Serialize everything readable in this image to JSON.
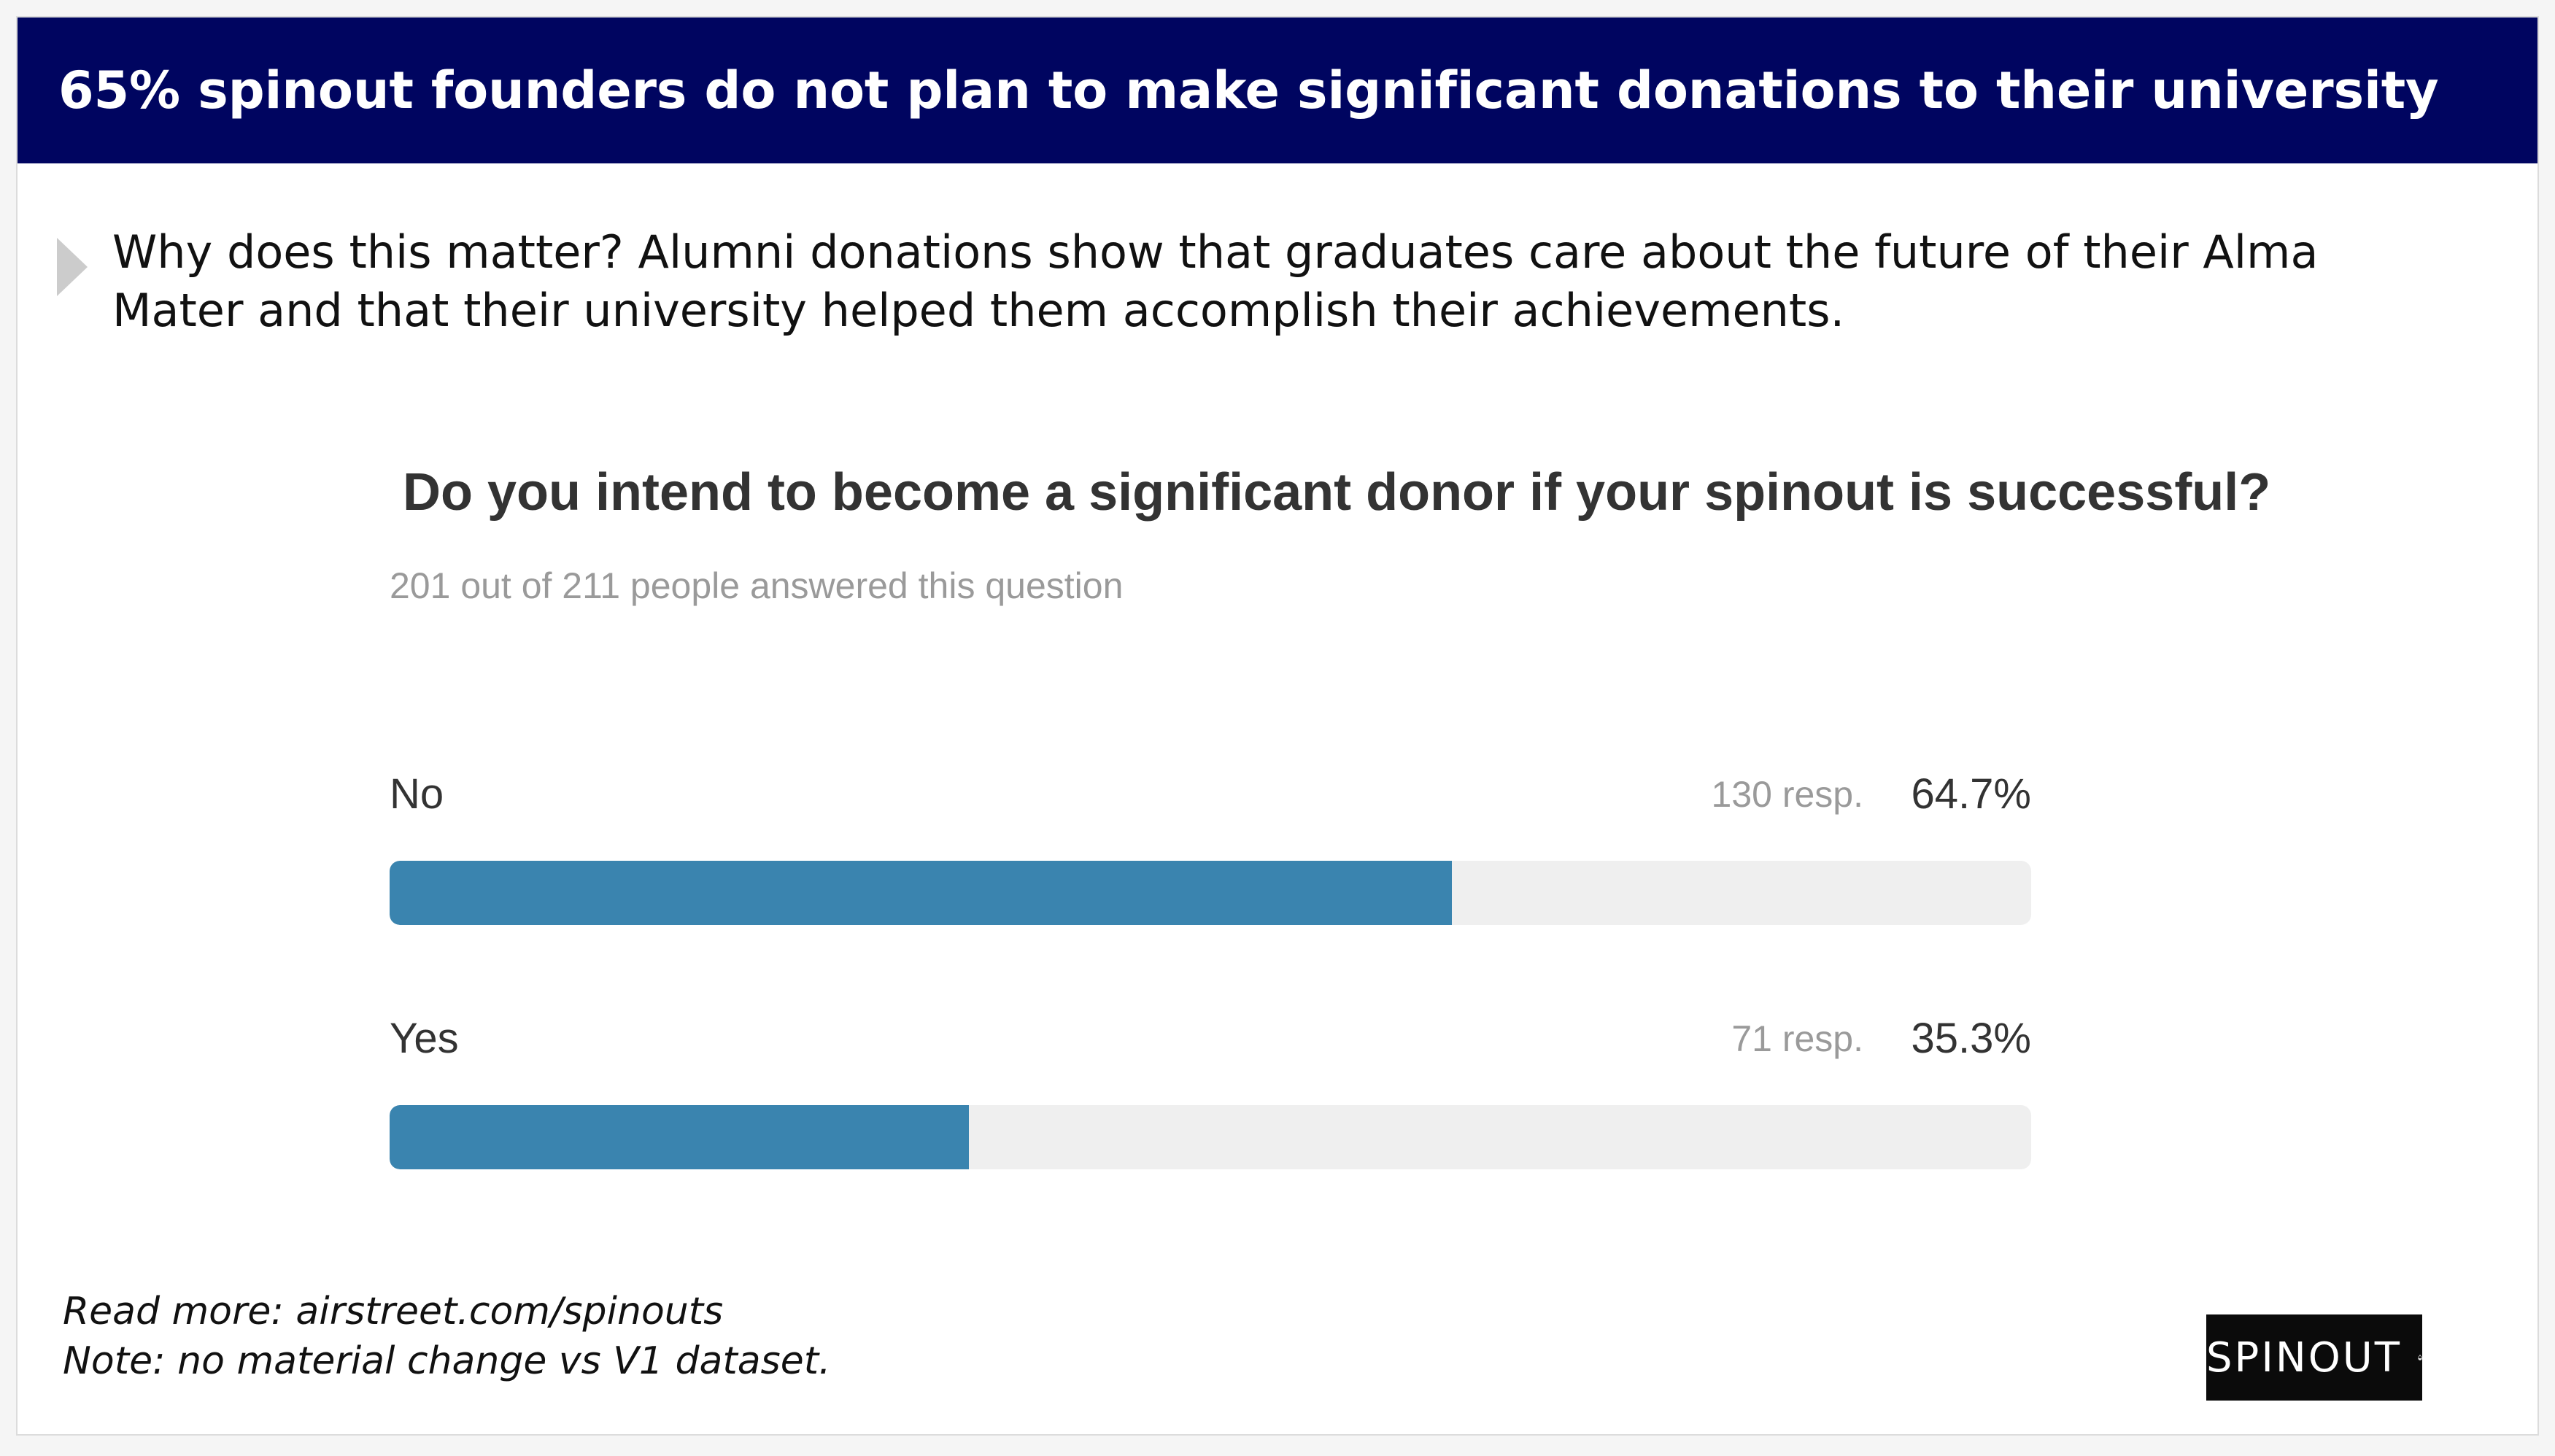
{
  "header": {
    "title": "65% spinout founders do not plan to make significant donations to their university"
  },
  "callout": {
    "text": "Why does this matter? Alumni donations show that graduates care about the future of their Alma Mater and that their university helped them accomplish their achievements."
  },
  "survey": {
    "question": "Do you intend to become a significant donor if your spinout is successful?",
    "answered_text": "201 out of 211 people answered this question",
    "options": [
      {
        "label": "No",
        "responses": "130 resp.",
        "percent_label": "64.7%"
      },
      {
        "label": "Yes",
        "responses": "71 resp.",
        "percent_label": "35.3%"
      }
    ]
  },
  "chart_data": {
    "type": "bar",
    "title": "Do you intend to become a significant donor if your spinout is successful?",
    "categories": [
      "No",
      "Yes"
    ],
    "series": [
      {
        "values": [
          64.7,
          35.3
        ]
      }
    ],
    "responses": [
      130,
      71
    ],
    "answered": 201,
    "total": 211,
    "xlim": [
      0,
      100
    ],
    "bar_color": "#3a84af",
    "track_color": "#efefef"
  },
  "footer": {
    "line1": "Read more: airstreet.com/spinouts",
    "line2": "Note: no material change vs V1 dataset."
  },
  "logo": {
    "text": "SPINOUT",
    "icon": "drop-icon"
  },
  "colors": {
    "header_bg": "#000560",
    "bar": "#3a84af"
  }
}
